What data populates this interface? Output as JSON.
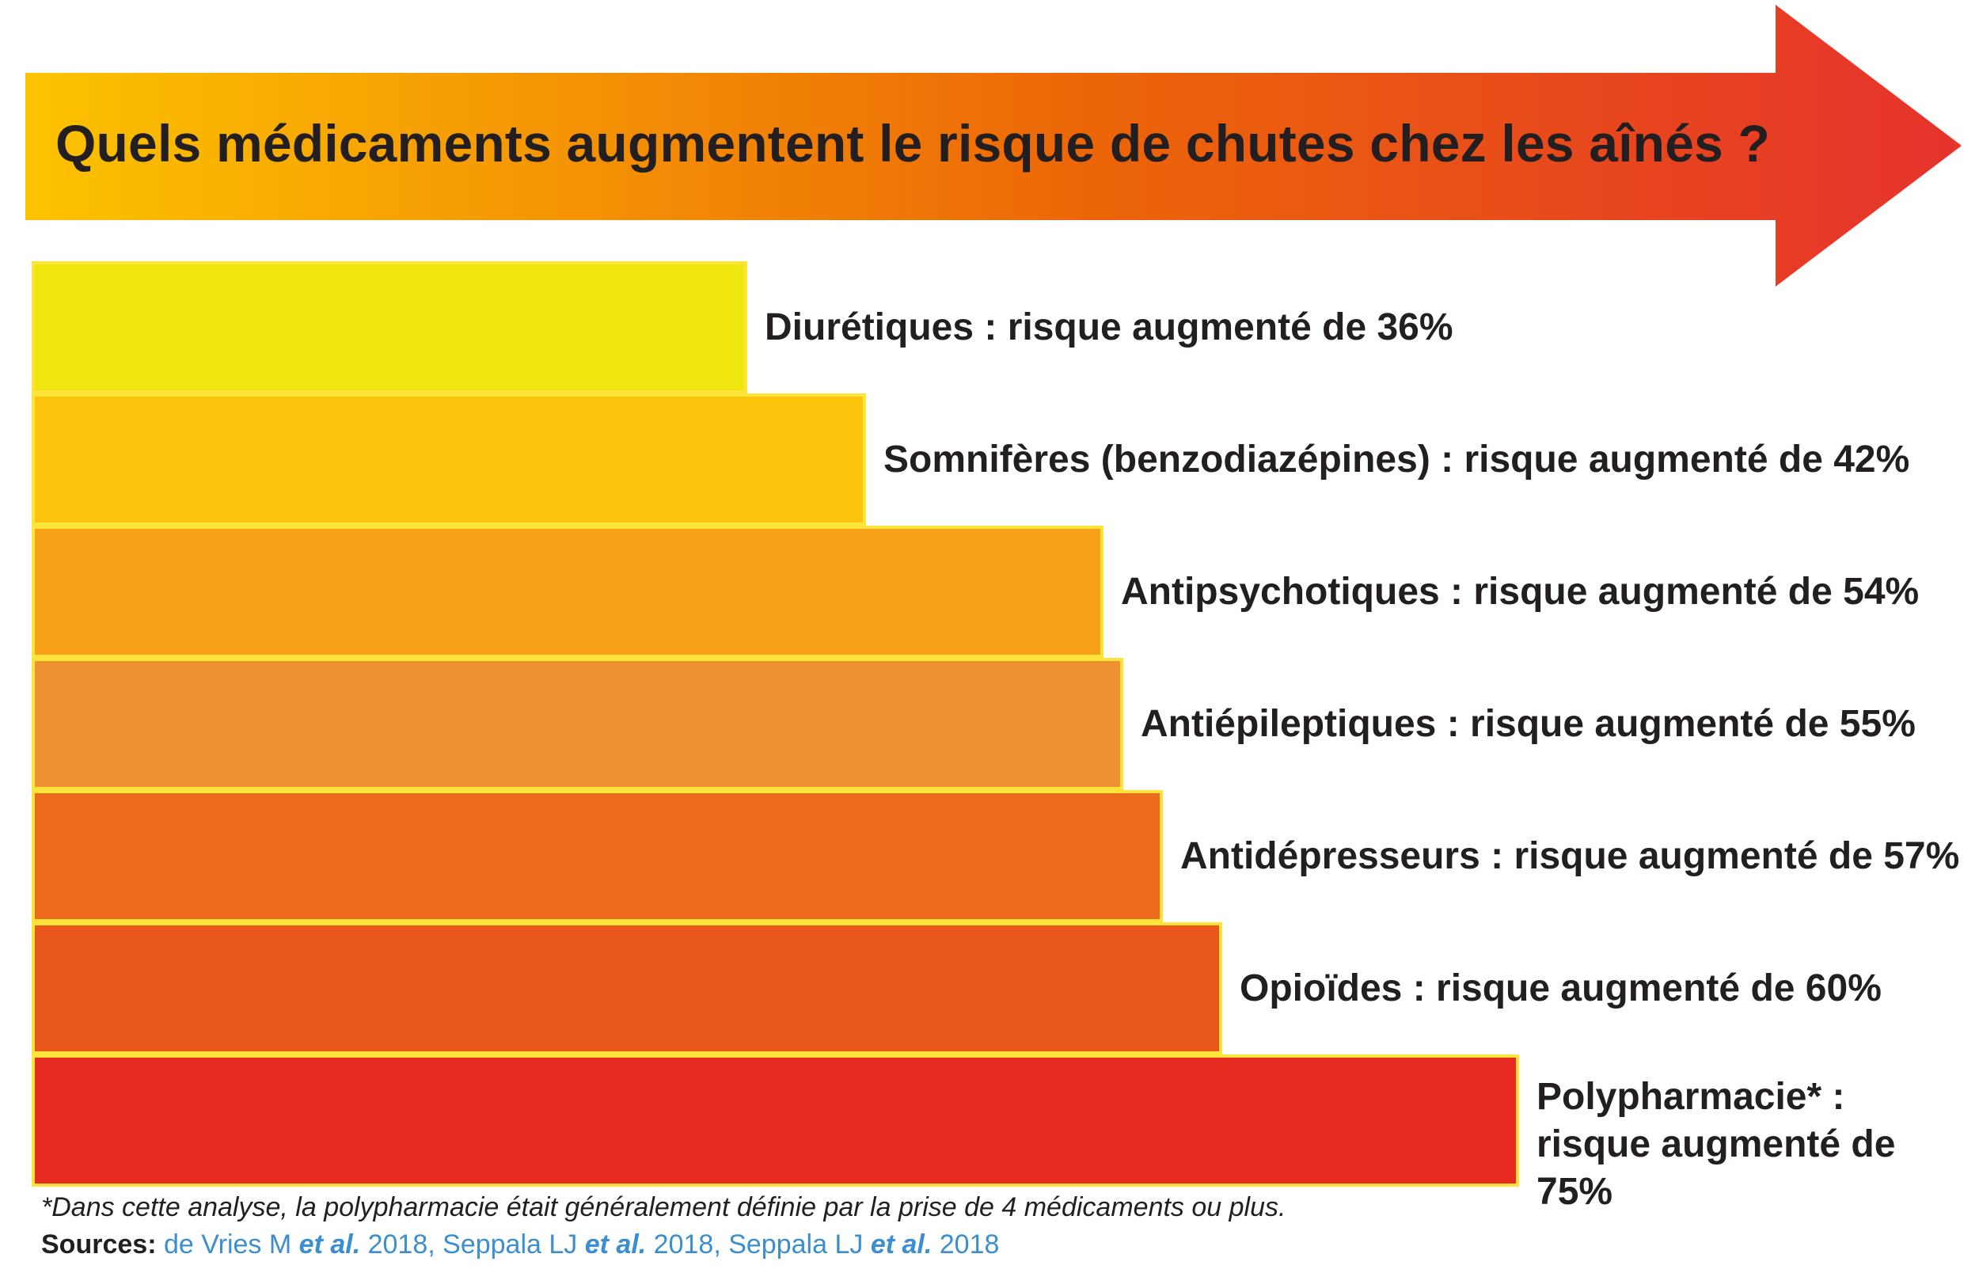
{
  "title": "Quels médicaments augmentent le risque de chutes chez les aînés ?",
  "colors": {
    "arrow_start": "#fcc300",
    "arrow_mid": "#ec6608",
    "arrow_end": "#e5322d",
    "bar_border": "#fde33a",
    "text": "#231f20",
    "link": "#3b8fd0"
  },
  "chart_data": {
    "type": "bar",
    "orientation": "horizontal",
    "title": "Quels médicaments augmentent le risque de chutes chez les aînés ?",
    "categories": [
      "Diurétiques",
      "Somnifères (benzodiazépines)",
      "Antipsychotiques",
      "Antiépileptiques",
      "Antidépresseurs",
      "Opioïdes",
      "Polypharmacie*"
    ],
    "values": [
      36,
      42,
      54,
      55,
      57,
      60,
      75
    ],
    "unit": "%",
    "labels": [
      "Diurétiques : risque augmenté de 36%",
      "Somnifères (benzodiazépines) : risque augmenté de 42%",
      "Antipsychotiques : risque augmenté de 54%",
      "Antiépileptiques : risque augmenté de 55%",
      "Antidépresseurs : risque augmenté de 57%",
      "Opioïdes : risque augmenté de 60%",
      "Polypharmacie* : risque augmenté de 75%"
    ],
    "bar_colors": [
      "#f0e60f",
      "#fcc30b",
      "#f6a117",
      "#ee9132",
      "#ec6a1c",
      "#e8571c",
      "#e62b20"
    ],
    "grid": false,
    "legend": "none"
  },
  "footnote": "*Dans cette analyse, la polypharmacie était généralement définie par la prise de 4 médicaments ou plus.",
  "sources": {
    "label": "Sources",
    "separator": ": ",
    "items": [
      {
        "author": "de Vries M",
        "etal": "et al.",
        "year": "2018"
      },
      {
        "author": "Seppala LJ",
        "etal": "et al.",
        "year": "2018"
      },
      {
        "author": "Seppala LJ",
        "etal": "et al.",
        "year": "2018"
      }
    ]
  }
}
